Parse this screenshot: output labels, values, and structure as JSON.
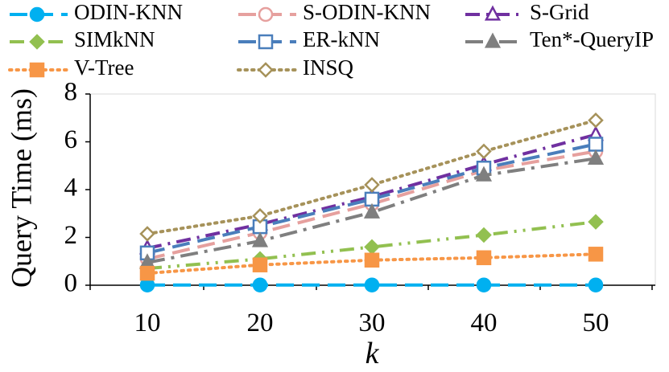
{
  "chart_data": {
    "type": "line",
    "title": "",
    "xlabel": "k",
    "ylabel": "Query Time (ms)",
    "categories": [
      "10",
      "20",
      "30",
      "40",
      "50"
    ],
    "x": [
      10,
      20,
      30,
      40,
      50
    ],
    "ylim": [
      0,
      8
    ],
    "yticks": [
      "0",
      "2",
      "4",
      "6",
      "8"
    ],
    "grid": false,
    "legend_position": "top",
    "series": [
      {
        "name": "ODIN-KNN",
        "values": [
          0.01,
          0.01,
          0.01,
          0.01,
          0.01
        ],
        "color": "#00B0F0",
        "marker": "circle-filled",
        "dash": "long-dash"
      },
      {
        "name": "S-ODIN-KNN",
        "values": [
          1.1,
          2.2,
          3.4,
          4.8,
          5.6
        ],
        "color": "#E6A09E",
        "marker": "circle-open",
        "dash": "long-dash"
      },
      {
        "name": "S-Grid",
        "values": [
          1.55,
          2.55,
          3.7,
          5.05,
          6.3
        ],
        "color": "#7030A0",
        "marker": "triangle-open",
        "dash": "dash-dot"
      },
      {
        "name": "SIMkNN",
        "values": [
          0.7,
          1.1,
          1.6,
          2.1,
          2.65
        ],
        "color": "#92C050",
        "marker": "diamond-filled",
        "dash": "dash-dot-dot"
      },
      {
        "name": "ER-kNN",
        "values": [
          1.35,
          2.45,
          3.6,
          4.9,
          5.9
        ],
        "color": "#4A7EBB",
        "marker": "square-open",
        "dash": "long-dash"
      },
      {
        "name": "Ten*-QueryIP",
        "values": [
          0.95,
          1.85,
          3.05,
          4.6,
          5.3
        ],
        "color": "#7F7F7F",
        "marker": "triangle-filled",
        "dash": "long-dash-dot"
      },
      {
        "name": "V-Tree",
        "values": [
          0.5,
          0.85,
          1.05,
          1.15,
          1.3
        ],
        "color": "#F79646",
        "marker": "square-filled",
        "dash": "dotted"
      },
      {
        "name": "INSQ",
        "values": [
          2.15,
          2.9,
          4.2,
          5.6,
          6.9
        ],
        "color": "#A6925A",
        "marker": "diamond-open",
        "dash": "dotted"
      }
    ]
  }
}
